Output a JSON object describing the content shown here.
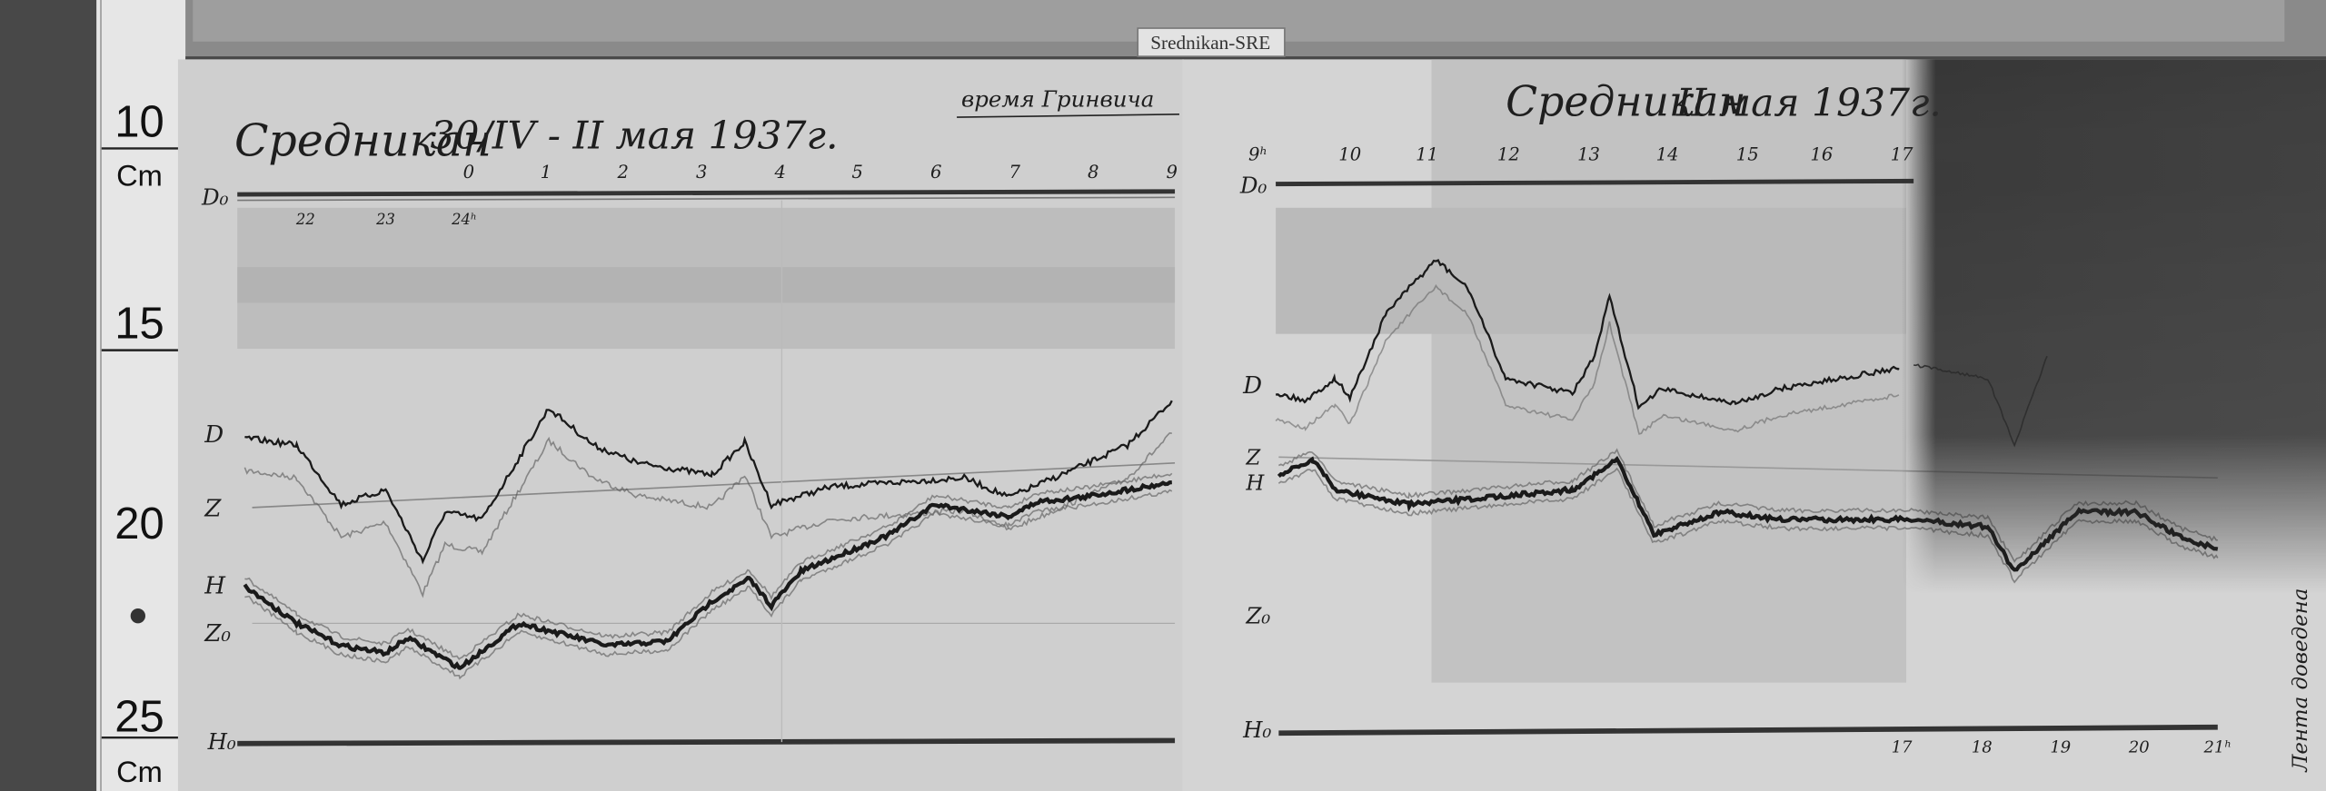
{
  "station_label": "Srednikan-SRE",
  "ruler": {
    "labels": [
      "10",
      "Cm",
      "15",
      "20",
      "25",
      "Cm"
    ]
  },
  "left_sheet": {
    "station": "Средникан",
    "date": "30/IV - II мая 1937г.",
    "time_note": "время Гринвича",
    "top_hours": [
      "0",
      "1",
      "2",
      "3",
      "4",
      "5",
      "6",
      "7",
      "8",
      "9"
    ],
    "lower_hours": [
      "22",
      "23",
      "24ʰ"
    ],
    "trace_labels": {
      "d0": "D₀",
      "d": "D",
      "z": "Z",
      "h": "H",
      "z0": "Z₀",
      "h0": "H₀"
    }
  },
  "right_sheet": {
    "station": "Средникан",
    "date": "II мая 1937г.",
    "top_hours": [
      "9ʰ",
      "10",
      "11",
      "12",
      "13",
      "14",
      "15",
      "16",
      "17"
    ],
    "bottom_hours": [
      "17",
      "18",
      "19",
      "20",
      "21ʰ"
    ],
    "margin_note": "Лента доведена",
    "trace_labels": {
      "d0": "D₀",
      "d": "D",
      "z": "Z",
      "h": "H",
      "z0": "Z₀",
      "h0": "H₀"
    }
  },
  "colors": {
    "paper": "#d2d2d2",
    "trace": "#1a1a1a",
    "shadow": "#2a2a2a",
    "wood": "#4a4a4a"
  }
}
